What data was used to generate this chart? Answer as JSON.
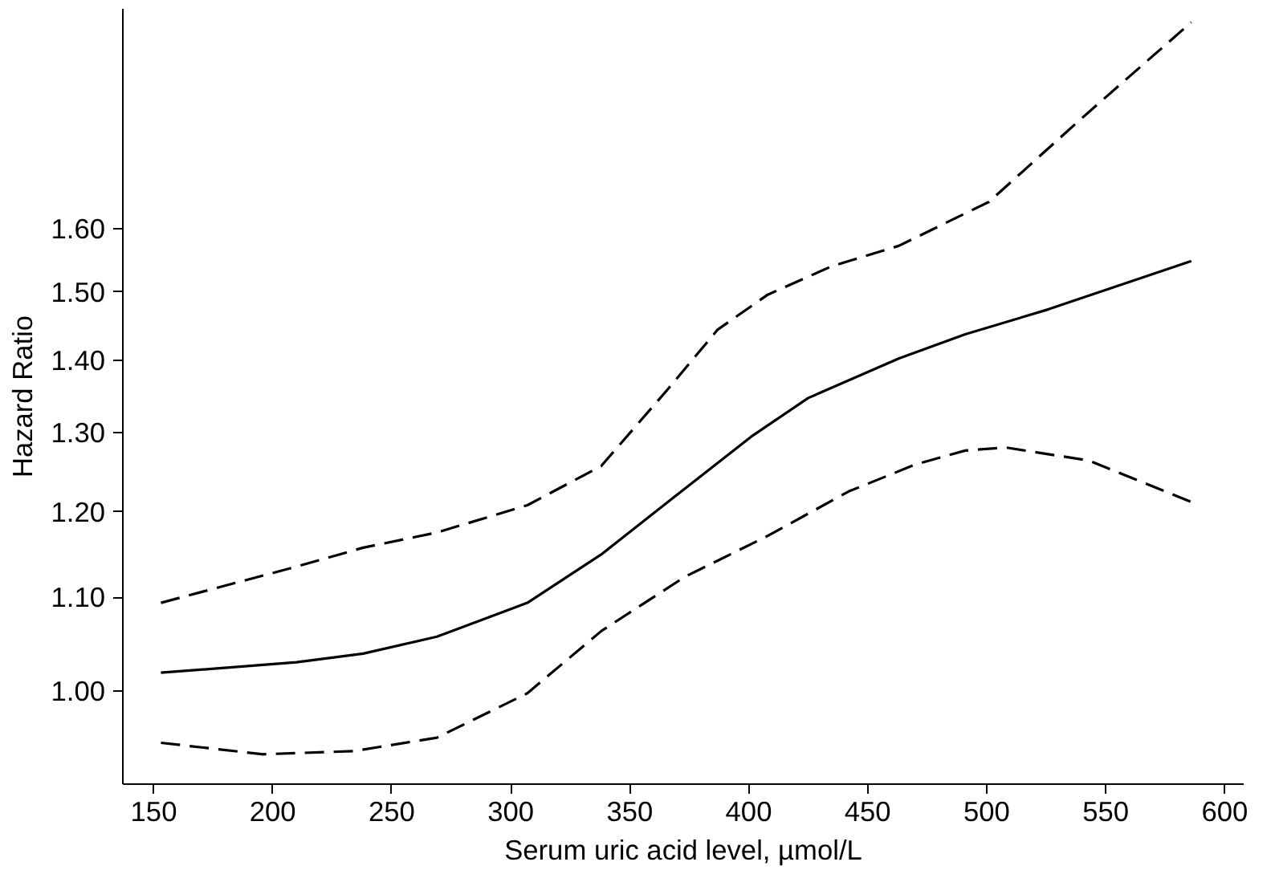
{
  "chart_data": {
    "type": "line",
    "xlabel": "Serum uric acid level, µmol/L",
    "ylabel": "Hazard Ratio",
    "log": "y",
    "grid": false,
    "marker": "none",
    "xlim": [
      137,
      608
    ],
    "xticks": [
      150,
      200,
      250,
      300,
      350,
      400,
      450,
      500,
      550,
      600
    ],
    "ylim": [
      0.91,
      2.0
    ],
    "yticks": [
      {
        "value": 1.0,
        "label": "1.00"
      },
      {
        "value": 1.1,
        "label": "1.10"
      },
      {
        "value": 1.2,
        "label": "1.20"
      },
      {
        "value": 1.3,
        "label": "1.30"
      },
      {
        "value": 1.4,
        "label": "1.40"
      },
      {
        "value": 1.5,
        "label": "1.50"
      },
      {
        "value": 1.6,
        "label": "1.60"
      }
    ],
    "series": [
      {
        "color": "#000000",
        "line_style": "solid",
        "x": [
          153,
          210,
          238,
          269,
          307,
          338,
          366,
          401,
          425,
          463,
          491,
          526,
          586
        ],
        "values": [
          1.019,
          1.03,
          1.039,
          1.057,
          1.094,
          1.149,
          1.212,
          1.295,
          1.347,
          1.402,
          1.437,
          1.474,
          1.548
        ]
      },
      {
        "color": "#000000",
        "line_style": "dashed",
        "x": [
          153,
          210,
          238,
          269,
          307,
          338,
          366,
          387,
          408,
          435,
          463,
          501,
          539,
          586
        ],
        "values": [
          1.094,
          1.135,
          1.157,
          1.175,
          1.208,
          1.257,
          1.359,
          1.444,
          1.496,
          1.54,
          1.572,
          1.644,
          1.786,
          1.973
        ]
      },
      {
        "color": "#000000",
        "line_style": "dashed",
        "x": [
          153,
          196,
          234,
          269,
          307,
          338,
          373,
          408,
          442,
          470,
          491,
          508,
          543,
          586
        ],
        "values": [
          0.949,
          0.938,
          0.941,
          0.954,
          0.998,
          1.063,
          1.123,
          1.171,
          1.225,
          1.259,
          1.277,
          1.281,
          1.264,
          1.212
        ]
      }
    ]
  }
}
